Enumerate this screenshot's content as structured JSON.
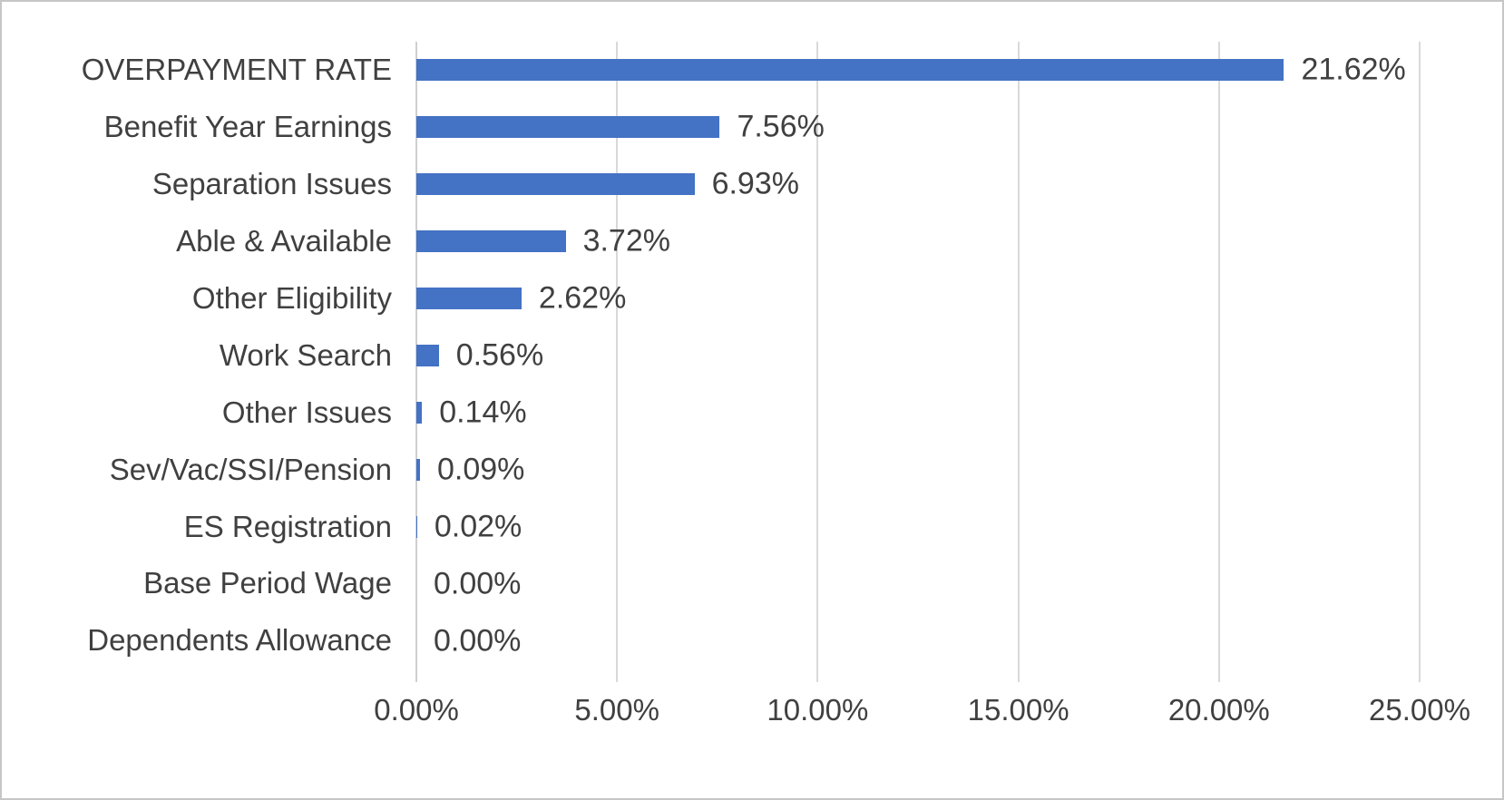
{
  "chart_data": {
    "type": "bar",
    "orientation": "horizontal",
    "title": "",
    "xlabel": "",
    "ylabel": "",
    "categories": [
      "OVERPAYMENT RATE",
      "Benefit Year Earnings",
      "Separation Issues",
      "Able & Available",
      "Other Eligibility",
      "Work Search",
      "Other Issues",
      "Sev/Vac/SSI/Pension",
      "ES Registration",
      "Base Period Wage",
      "Dependents Allowance"
    ],
    "values": [
      21.62,
      7.56,
      6.93,
      3.72,
      2.62,
      0.56,
      0.14,
      0.09,
      0.02,
      0.0,
      0.0
    ],
    "data_labels": [
      "21.62%",
      "7.56%",
      "6.93%",
      "3.72%",
      "2.62%",
      "0.56%",
      "0.14%",
      "0.09%",
      "0.02%",
      "0.00%",
      "0.00%"
    ],
    "x_ticks": [
      "0.00%",
      "5.00%",
      "10.00%",
      "15.00%",
      "20.00%",
      "25.00%"
    ],
    "xlim": [
      0,
      25
    ],
    "grid": true,
    "legend": false,
    "colors": {
      "bar": "#4472C4",
      "gridline": "#D9D9D9",
      "axis_line": "#CFCFCF",
      "text": "#404040",
      "background": "#FFFFFF",
      "frame_border": "#C6C6C6"
    }
  }
}
